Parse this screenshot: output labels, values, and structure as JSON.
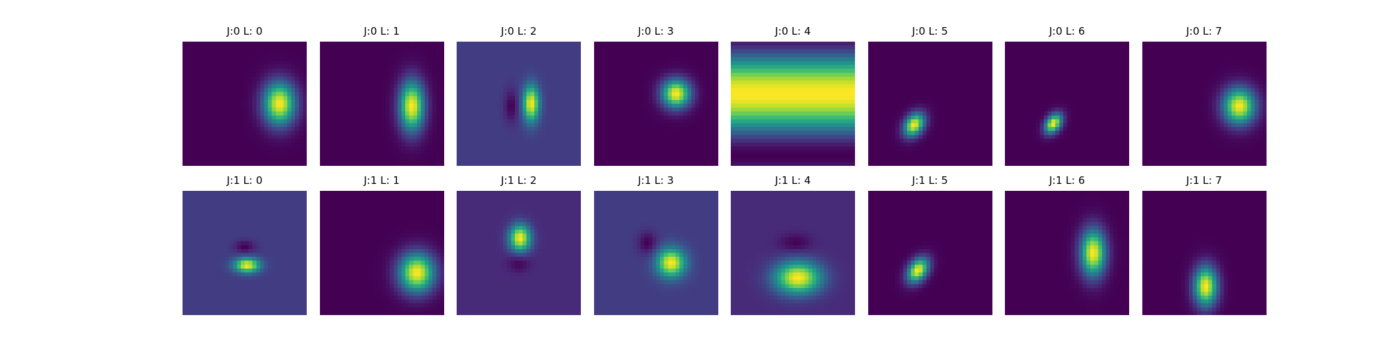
{
  "chart_data": {
    "type": "heatmap",
    "colormap": "viridis",
    "grid": false,
    "axes": "off",
    "colors": {
      "background": "#ffffff",
      "viridis": [
        "#440154",
        "#482878",
        "#3e4989",
        "#31688e",
        "#26828e",
        "#1f9e89",
        "#35b779",
        "#6ece58",
        "#b5de2b",
        "#fde725"
      ]
    },
    "panels": [
      {
        "title": "J:0 L: 0",
        "row": 0,
        "col": 0,
        "background": 0.0,
        "blobs": [
          {
            "cx": 0.78,
            "cy": 0.5,
            "sx": 0.09,
            "sy": 0.12,
            "a": 1.0
          }
        ]
      },
      {
        "title": "J:0 L: 1",
        "row": 0,
        "col": 1,
        "background": 0.0,
        "blobs": [
          {
            "cx": 0.74,
            "cy": 0.52,
            "sx": 0.07,
            "sy": 0.14,
            "a": 1.0
          }
        ]
      },
      {
        "title": "J:0 L: 2",
        "row": 0,
        "col": 2,
        "background": 0.18,
        "blobs": [
          {
            "cx": 0.6,
            "cy": 0.5,
            "sx": 0.045,
            "sy": 0.1,
            "a": 0.82
          },
          {
            "cx": 0.44,
            "cy": 0.52,
            "sx": 0.04,
            "sy": 0.09,
            "a": -0.18
          }
        ]
      },
      {
        "title": "J:0 L: 3",
        "row": 0,
        "col": 3,
        "background": 0.0,
        "blobs": [
          {
            "cx": 0.66,
            "cy": 0.42,
            "sx": 0.08,
            "sy": 0.08,
            "a": 1.0
          }
        ]
      },
      {
        "title": "J:0 L: 4",
        "row": 0,
        "col": 4,
        "pattern": "horizontal-wave",
        "wave": {
          "period": 1.0,
          "phase": 0.08
        }
      },
      {
        "title": "J:0 L: 5",
        "row": 0,
        "col": 5,
        "background": 0.0,
        "blobs": [
          {
            "cx": 0.37,
            "cy": 0.67,
            "sx": 0.05,
            "sy": 0.07,
            "a": 1.0,
            "rot": 35
          }
        ]
      },
      {
        "title": "J:0 L: 6",
        "row": 0,
        "col": 6,
        "background": 0.0,
        "blobs": [
          {
            "cx": 0.39,
            "cy": 0.66,
            "sx": 0.04,
            "sy": 0.06,
            "a": 1.0,
            "rot": 35
          }
        ]
      },
      {
        "title": "J:0 L: 7",
        "row": 0,
        "col": 7,
        "background": 0.0,
        "blobs": [
          {
            "cx": 0.78,
            "cy": 0.52,
            "sx": 0.09,
            "sy": 0.1,
            "a": 1.0
          }
        ]
      },
      {
        "title": "J:1 L: 0",
        "row": 1,
        "col": 0,
        "background": 0.18,
        "blobs": [
          {
            "cx": 0.52,
            "cy": 0.6,
            "sx": 0.07,
            "sy": 0.04,
            "a": 0.82
          },
          {
            "cx": 0.5,
            "cy": 0.45,
            "sx": 0.06,
            "sy": 0.035,
            "a": -0.18
          }
        ]
      },
      {
        "title": "J:1 L: 1",
        "row": 1,
        "col": 1,
        "background": 0.0,
        "blobs": [
          {
            "cx": 0.78,
            "cy": 0.66,
            "sx": 0.1,
            "sy": 0.11,
            "a": 1.0
          }
        ]
      },
      {
        "title": "J:1 L: 2",
        "row": 1,
        "col": 2,
        "background": 0.12,
        "blobs": [
          {
            "cx": 0.51,
            "cy": 0.38,
            "sx": 0.06,
            "sy": 0.075,
            "a": 0.88
          },
          {
            "cx": 0.5,
            "cy": 0.58,
            "sx": 0.06,
            "sy": 0.05,
            "a": -0.12
          }
        ]
      },
      {
        "title": "J:1 L: 3",
        "row": 1,
        "col": 3,
        "background": 0.18,
        "blobs": [
          {
            "cx": 0.62,
            "cy": 0.58,
            "sx": 0.08,
            "sy": 0.08,
            "a": 0.82
          },
          {
            "cx": 0.43,
            "cy": 0.42,
            "sx": 0.055,
            "sy": 0.065,
            "a": -0.18
          }
        ]
      },
      {
        "title": "J:1 L: 4",
        "row": 1,
        "col": 4,
        "background": 0.12,
        "blobs": [
          {
            "cx": 0.54,
            "cy": 0.7,
            "sx": 0.13,
            "sy": 0.09,
            "a": 0.88
          },
          {
            "cx": 0.52,
            "cy": 0.42,
            "sx": 0.09,
            "sy": 0.05,
            "a": -0.12
          }
        ]
      },
      {
        "title": "J:1 L: 5",
        "row": 1,
        "col": 5,
        "background": 0.0,
        "blobs": [
          {
            "cx": 0.4,
            "cy": 0.64,
            "sx": 0.05,
            "sy": 0.075,
            "a": 1.0,
            "rot": 35
          }
        ]
      },
      {
        "title": "J:1 L: 6",
        "row": 1,
        "col": 6,
        "background": 0.0,
        "blobs": [
          {
            "cx": 0.71,
            "cy": 0.5,
            "sx": 0.07,
            "sy": 0.13,
            "a": 1.0
          }
        ]
      },
      {
        "title": "J:1 L: 7",
        "row": 1,
        "col": 7,
        "background": 0.0,
        "blobs": [
          {
            "cx": 0.51,
            "cy": 0.77,
            "sx": 0.065,
            "sy": 0.11,
            "a": 1.0
          }
        ]
      }
    ]
  }
}
